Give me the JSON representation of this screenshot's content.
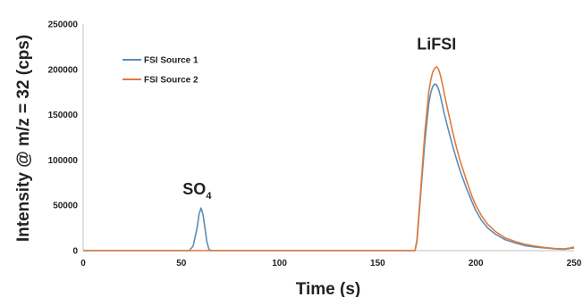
{
  "chart_data": {
    "type": "line",
    "title": "",
    "xlabel": "Time (s)",
    "ylabel": "Intensity @ m/z = 32 (cps)",
    "xlim": [
      0,
      250
    ],
    "ylim": [
      0,
      250000
    ],
    "xticks": [
      0,
      50,
      100,
      150,
      200,
      250
    ],
    "yticks": [
      0,
      50000,
      100000,
      150000,
      200000,
      250000
    ],
    "grid": false,
    "legend_position": "top-left",
    "series": [
      {
        "name": "FSI Source 1",
        "color": "#5B8DB8",
        "x": [
          0,
          54,
          56,
          58,
          59,
          60,
          61,
          62,
          63,
          64,
          65,
          66,
          68,
          100,
          150,
          169,
          170,
          172,
          174,
          176,
          177,
          178,
          179,
          180,
          181,
          182,
          183,
          184,
          186,
          188,
          190,
          192,
          195,
          198,
          200,
          203,
          206,
          210,
          215,
          220,
          225,
          230,
          235,
          240,
          245,
          248,
          250
        ],
        "y": [
          0,
          0,
          5000,
          25000,
          40000,
          47000,
          40000,
          25000,
          10000,
          2000,
          0,
          0,
          0,
          0,
          0,
          0,
          10000,
          65000,
          120000,
          162000,
          174000,
          181000,
          184000,
          183000,
          178000,
          170000,
          160000,
          150000,
          133000,
          117000,
          102000,
          88000,
          70000,
          54000,
          44000,
          33000,
          25000,
          18000,
          12000,
          8500,
          5500,
          4000,
          3000,
          2000,
          1500,
          2500,
          3000
        ]
      },
      {
        "name": "FSI Source 2",
        "color": "#E07B39",
        "x": [
          0,
          50,
          100,
          150,
          169,
          170,
          172,
          174,
          176,
          177,
          178,
          179,
          180,
          181,
          182,
          183,
          184,
          186,
          188,
          190,
          192,
          195,
          198,
          200,
          203,
          206,
          210,
          215,
          220,
          225,
          230,
          235,
          240,
          245,
          248,
          250
        ],
        "y": [
          0,
          0,
          0,
          0,
          0,
          12000,
          70000,
          130000,
          175000,
          188000,
          197000,
          201000,
          203000,
          200000,
          193000,
          183000,
          172000,
          152000,
          133000,
          115000,
          99000,
          79000,
          60000,
          50000,
          38000,
          29000,
          21000,
          14000,
          10000,
          7000,
          5000,
          3500,
          2500,
          2000,
          3000,
          4000
        ]
      }
    ],
    "annotations": [
      {
        "text": "SO",
        "subscript": "4",
        "x": 58,
        "y": 62000
      },
      {
        "text": "LiFSI",
        "x": 180,
        "y": 222000
      }
    ]
  }
}
